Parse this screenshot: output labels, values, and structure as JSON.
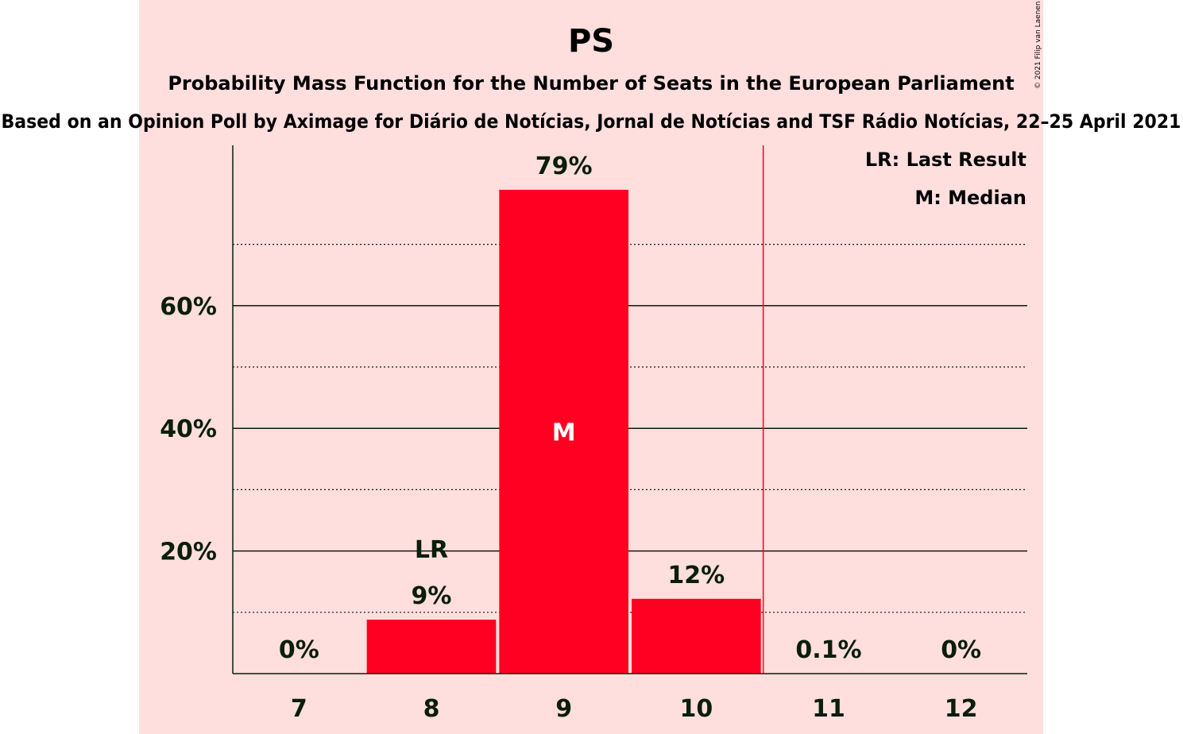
{
  "chart_data": {
    "type": "bar",
    "title": "PS",
    "subtitle": "Probability Mass Function for the Number of Seats in the European Parliament",
    "source": "Based on an Opinion Poll by Aximage for Diário de Notícias, Jornal de Notícias and TSF Rádio Notícias, 22–25 April 2021",
    "copyright": "© 2021 Filip van Laenen",
    "categories": [
      "7",
      "8",
      "9",
      "10",
      "11",
      "12"
    ],
    "values": [
      0,
      8.8,
      78.9,
      12.2,
      0.1,
      0
    ],
    "value_labels": [
      "0%",
      "9%",
      "79%",
      "12%",
      "0.1%",
      "0%"
    ],
    "ylim": [
      0,
      86
    ],
    "y_ticks": [
      20,
      40,
      60
    ],
    "y_tick_labels": [
      "20%",
      "40%",
      "60%"
    ],
    "y_minor_ticks": [
      10,
      30,
      50,
      70
    ],
    "majority_line_after": "10",
    "last_result": "8",
    "last_result_marker": "LR",
    "median": "9",
    "median_marker": "M",
    "legend": [
      "LR: Last Result",
      "M: Median"
    ],
    "legend_position": "top-right",
    "colors": {
      "bar": "#ff0022",
      "majority_band": "#ffdede",
      "majority_line": "#ff0022",
      "text": "#0a1e0a",
      "median_text": "#ffffff"
    }
  }
}
